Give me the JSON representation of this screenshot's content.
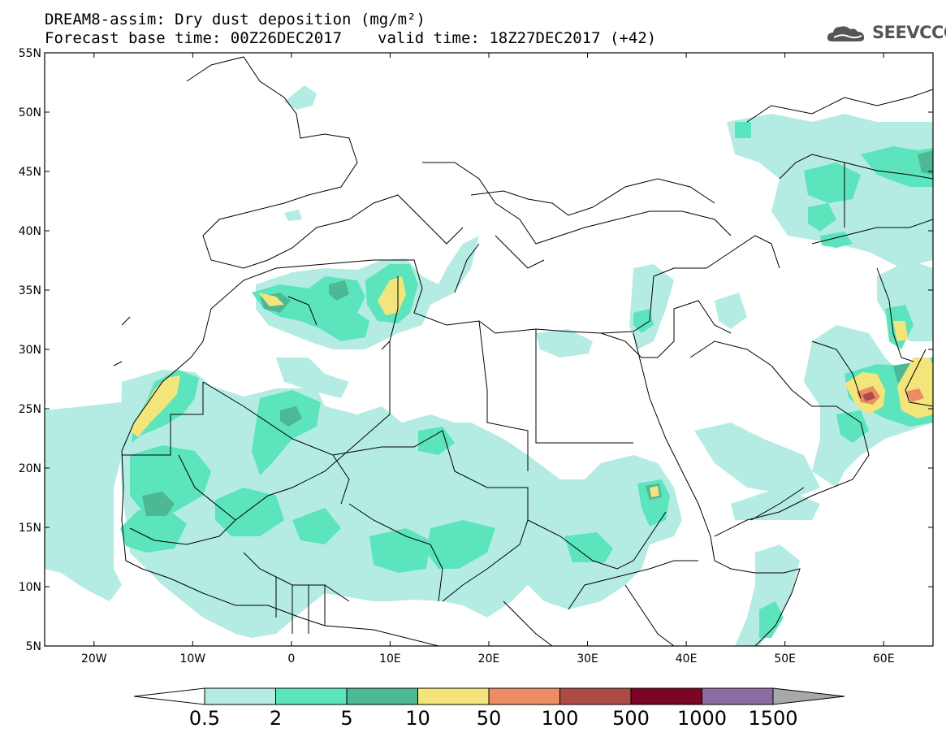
{
  "header": {
    "title_line1": "DREAM8-assim: Dry dust deposition (mg/m²)",
    "base_time": "Forecast base time: 00Z26DEC2017",
    "valid_time": "valid time: 18Z27DEC2017 (+42)",
    "logo_text": "SEEVCCC",
    "logo_icon": "cloud-icon"
  },
  "map": {
    "extent": {
      "lon_min": -25,
      "lon_max": 65,
      "lat_min": 5,
      "lat_max": 55
    },
    "lat_ticks": [
      {
        "value": 55,
        "label": "55N"
      },
      {
        "value": 50,
        "label": "50N"
      },
      {
        "value": 45,
        "label": "45N"
      },
      {
        "value": 40,
        "label": "40N"
      },
      {
        "value": 35,
        "label": "35N"
      },
      {
        "value": 30,
        "label": "30N"
      },
      {
        "value": 25,
        "label": "25N"
      },
      {
        "value": 20,
        "label": "20N"
      },
      {
        "value": 15,
        "label": "15N"
      },
      {
        "value": 10,
        "label": "10N"
      },
      {
        "value": 5,
        "label": "5N"
      }
    ],
    "lon_ticks": [
      {
        "value": -20,
        "label": "20W"
      },
      {
        "value": -10,
        "label": "10W"
      },
      {
        "value": 0,
        "label": "0"
      },
      {
        "value": 10,
        "label": "10E"
      },
      {
        "value": 20,
        "label": "20E"
      },
      {
        "value": 30,
        "label": "30E"
      },
      {
        "value": 40,
        "label": "40E"
      },
      {
        "value": 50,
        "label": "50E"
      },
      {
        "value": 60,
        "label": "60E"
      }
    ]
  },
  "colorbar": {
    "levels": [
      "0.5",
      "2",
      "5",
      "10",
      "50",
      "100",
      "500",
      "1000",
      "1500"
    ],
    "colors": [
      "#b4ece4",
      "#5ce4bc",
      "#4cb894",
      "#f4e47c",
      "#ec8c64",
      "#ac4c44",
      "#7c0424",
      "#8c6ca4",
      "#a8a8a8"
    ]
  }
}
